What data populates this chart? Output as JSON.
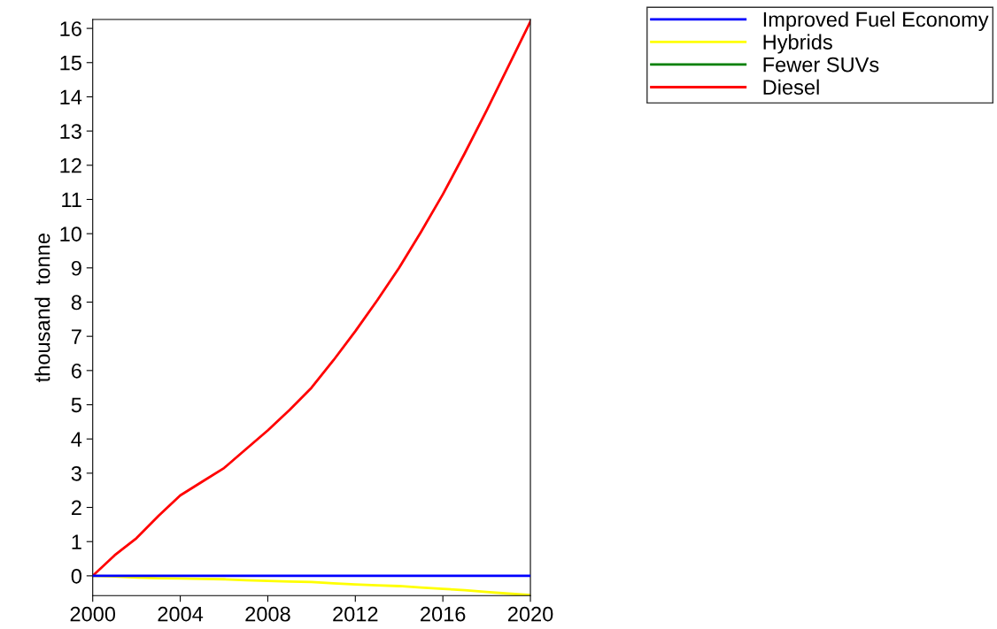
{
  "chart_data": {
    "type": "line",
    "ylabel": "thousand  tonne",
    "x": [
      2000,
      2001,
      2002,
      2003,
      2004,
      2005,
      2006,
      2007,
      2008,
      2009,
      2010,
      2011,
      2012,
      2013,
      2014,
      2015,
      2016,
      2017,
      2018,
      2019,
      2020
    ],
    "series": [
      {
        "name": "Improved Fuel Economy",
        "color": "#0000ff",
        "values": [
          0,
          0,
          0,
          0,
          0,
          0,
          0,
          0,
          0,
          0,
          0,
          0,
          0,
          0,
          0,
          0,
          0,
          0,
          0,
          0,
          0
        ]
      },
      {
        "name": "Hybrids",
        "color": "#ffff00",
        "values": [
          0,
          -0.02,
          -0.05,
          -0.07,
          -0.08,
          -0.09,
          -0.1,
          -0.13,
          -0.15,
          -0.17,
          -0.18,
          -0.22,
          -0.25,
          -0.28,
          -0.3,
          -0.34,
          -0.38,
          -0.42,
          -0.47,
          -0.52,
          -0.56
        ]
      },
      {
        "name": "Fewer SUVs",
        "color": "#008000",
        "values": [
          null,
          null,
          null,
          null,
          null,
          null,
          null,
          null,
          null,
          null,
          null,
          null,
          null,
          null,
          null,
          null,
          null,
          null,
          null,
          null,
          null
        ]
      },
      {
        "name": "Diesel",
        "color": "#ff0000",
        "values": [
          0,
          0.6,
          1.1,
          1.75,
          2.35,
          2.75,
          3.15,
          3.7,
          4.25,
          4.85,
          5.5,
          6.3,
          7.15,
          8.05,
          9.0,
          10.05,
          11.15,
          12.35,
          13.6,
          14.9,
          16.2
        ]
      }
    ],
    "xlim": [
      2000,
      2020
    ],
    "xticks": [
      2000,
      2004,
      2008,
      2012,
      2016,
      2020
    ],
    "ylim": [
      -0.58,
      16.26
    ],
    "yticks": [
      0,
      1,
      2,
      3,
      4,
      5,
      6,
      7,
      8,
      9,
      10,
      11,
      12,
      13,
      14,
      15,
      16
    ],
    "grid": false,
    "legend": "top right",
    "marker": "none",
    "line_style": "solid"
  }
}
